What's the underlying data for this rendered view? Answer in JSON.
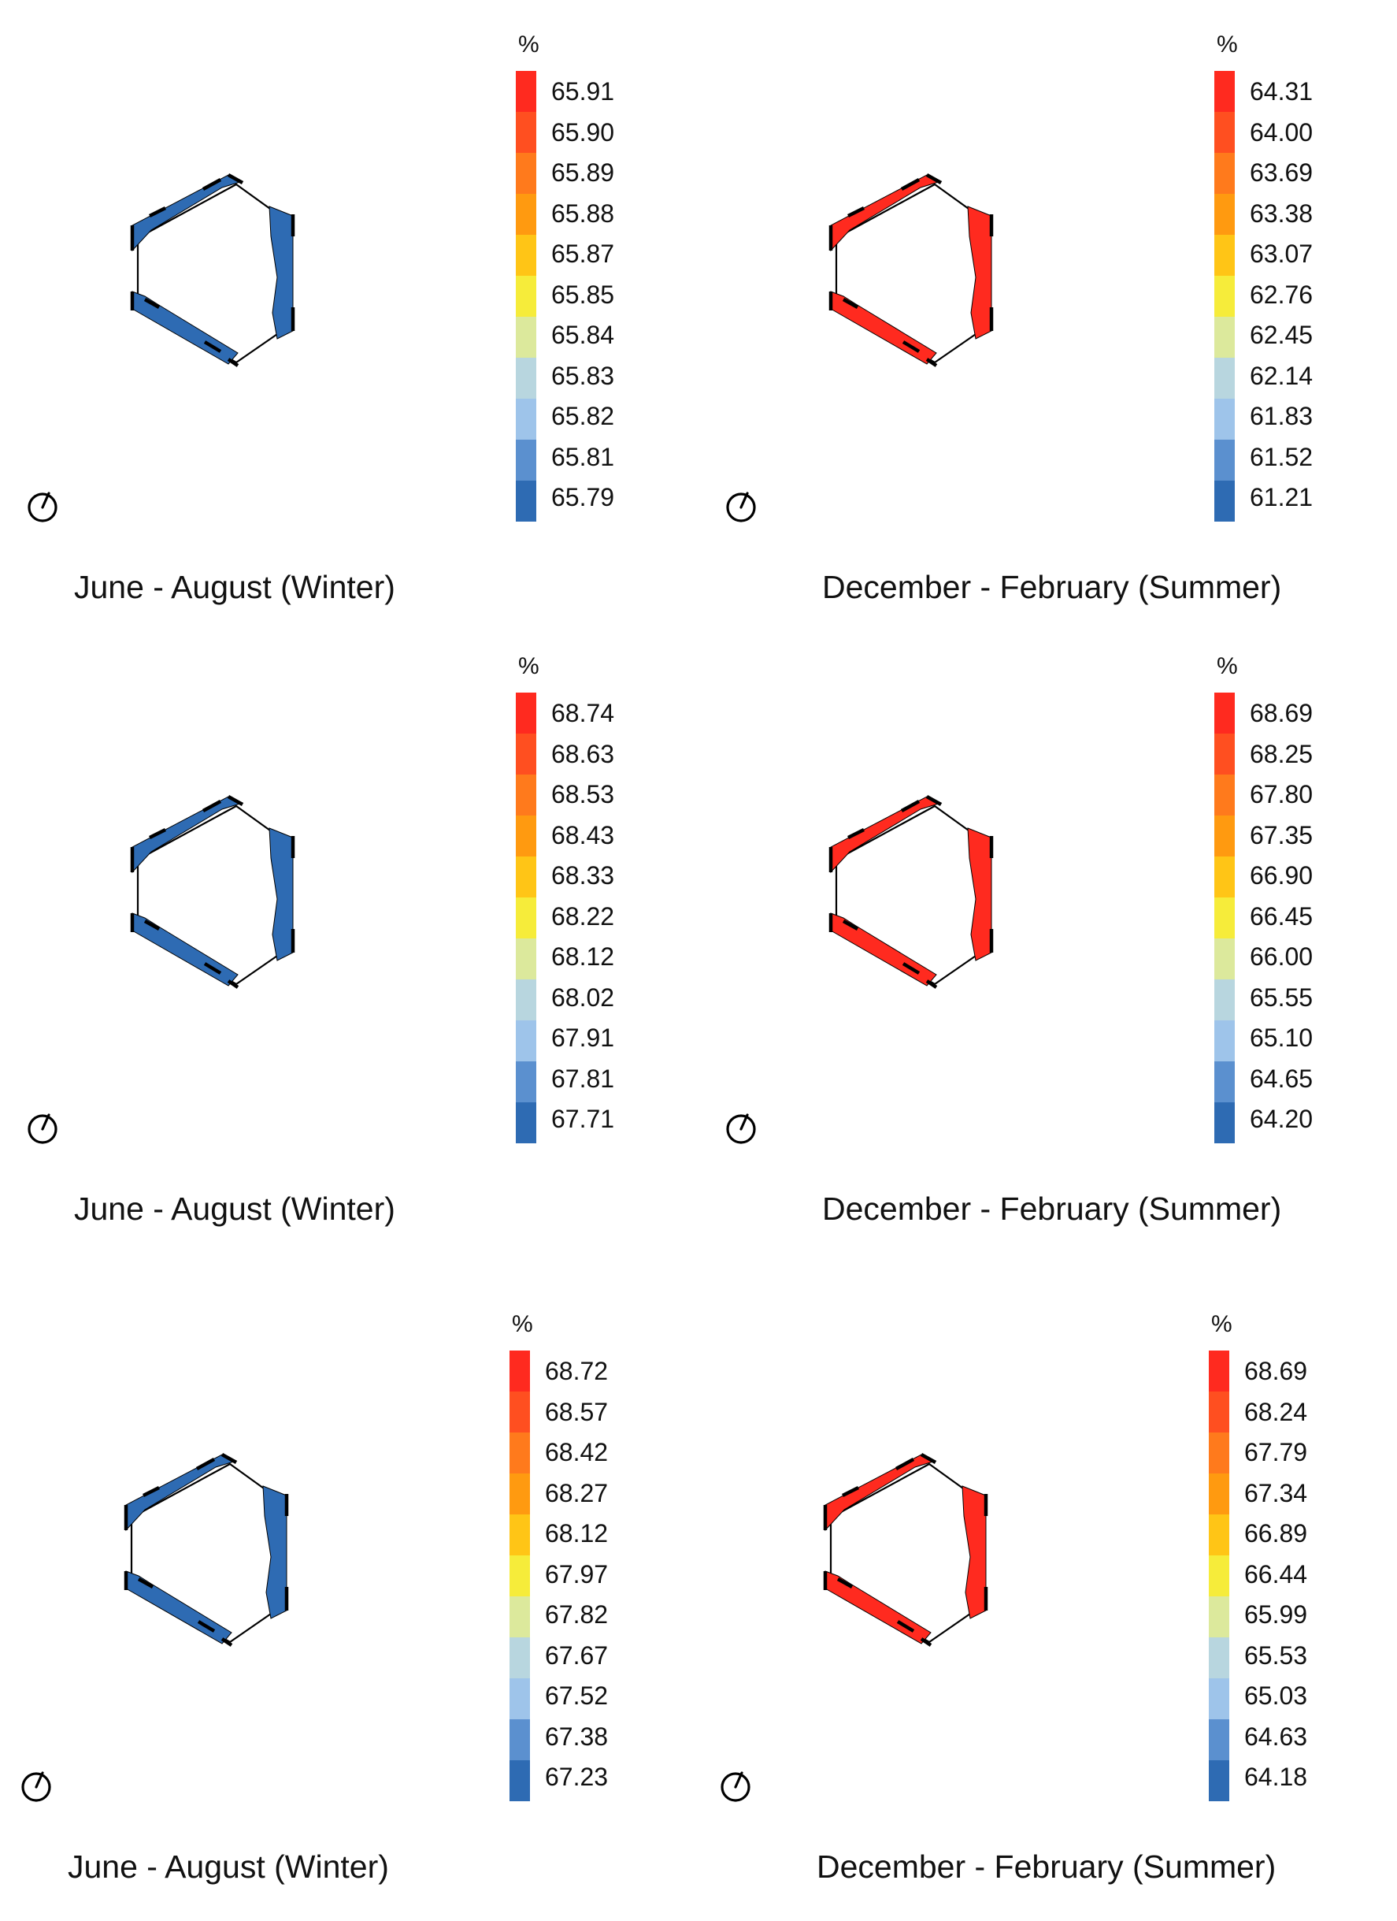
{
  "unit_label": "%",
  "colors": {
    "scale": [
      "#ff2a1f",
      "#ff4f20",
      "#ff7a1c",
      "#ff9a10",
      "#ffc516",
      "#f6ec3a",
      "#dce99c",
      "#b8d6df",
      "#9ec4ea",
      "#5b90cf",
      "#2e6bb3"
    ],
    "wall_winter": "#2e6bb3",
    "wall_summer": "#ff2a1f"
  },
  "panels": [
    {
      "caption": "June - August (Winter)",
      "season": "winter",
      "legend": [
        "65.91",
        "65.90",
        "65.89",
        "65.88",
        "65.87",
        "65.85",
        "65.84",
        "65.83",
        "65.82",
        "65.81",
        "65.79"
      ]
    },
    {
      "caption": "December - February (Summer)",
      "season": "summer",
      "legend": [
        "64.31",
        "64.00",
        "63.69",
        "63.38",
        "63.07",
        "62.76",
        "62.45",
        "62.14",
        "61.83",
        "61.52",
        "61.21"
      ]
    },
    {
      "caption": "June - August (Winter)",
      "season": "winter",
      "legend": [
        "68.74",
        "68.63",
        "68.53",
        "68.43",
        "68.33",
        "68.22",
        "68.12",
        "68.02",
        "67.91",
        "67.81",
        "67.71"
      ]
    },
    {
      "caption": "December - February (Summer)",
      "season": "summer",
      "legend": [
        "68.69",
        "68.25",
        "67.80",
        "67.35",
        "66.90",
        "66.45",
        "66.00",
        "65.55",
        "65.10",
        "64.65",
        "64.20"
      ]
    },
    {
      "caption": "June - August (Winter)",
      "season": "winter",
      "legend": [
        "68.72",
        "68.57",
        "68.42",
        "68.27",
        "68.12",
        "67.97",
        "67.82",
        "67.67",
        "67.52",
        "67.38",
        "67.23"
      ]
    },
    {
      "caption": "December - February (Summer)",
      "season": "summer",
      "legend": [
        "68.69",
        "68.24",
        "67.79",
        "67.34",
        "66.89",
        "66.44",
        "65.99",
        "65.53",
        "65.03",
        "64.63",
        "64.18"
      ]
    }
  ]
}
